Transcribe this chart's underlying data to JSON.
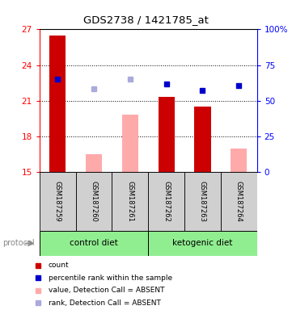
{
  "title": "GDS2738 / 1421785_at",
  "samples": [
    "GSM187259",
    "GSM187260",
    "GSM187261",
    "GSM187262",
    "GSM187263",
    "GSM187264"
  ],
  "ylim_left": [
    15,
    27
  ],
  "ylim_right": [
    0,
    100
  ],
  "yticks_left": [
    15,
    18,
    21,
    24,
    27
  ],
  "yticks_right": [
    0,
    25,
    50,
    75,
    100
  ],
  "yticklabels_right": [
    "0",
    "25",
    "50",
    "75",
    "100%"
  ],
  "bar_values": [
    26.5,
    null,
    null,
    21.3,
    20.5,
    null
  ],
  "bar_values_absent": [
    null,
    16.5,
    19.8,
    null,
    null,
    17.0
  ],
  "dot_values_present": [
    22.8,
    null,
    null,
    22.4,
    21.9,
    22.3
  ],
  "dot_values_absent": [
    null,
    22.0,
    22.8,
    null,
    null,
    null
  ],
  "bar_color_present": "#cc0000",
  "bar_color_absent": "#ffaaaa",
  "dot_color_present": "#0000cc",
  "dot_color_absent": "#aaaadd",
  "group_bg_color": "#90ee90",
  "sample_bg_color": "#d0d0d0",
  "bar_base": 15,
  "legend_items": [
    [
      "#cc0000",
      "count"
    ],
    [
      "#0000cc",
      "percentile rank within the sample"
    ],
    [
      "#ffaaaa",
      "value, Detection Call = ABSENT"
    ],
    [
      "#aaaadd",
      "rank, Detection Call = ABSENT"
    ]
  ]
}
